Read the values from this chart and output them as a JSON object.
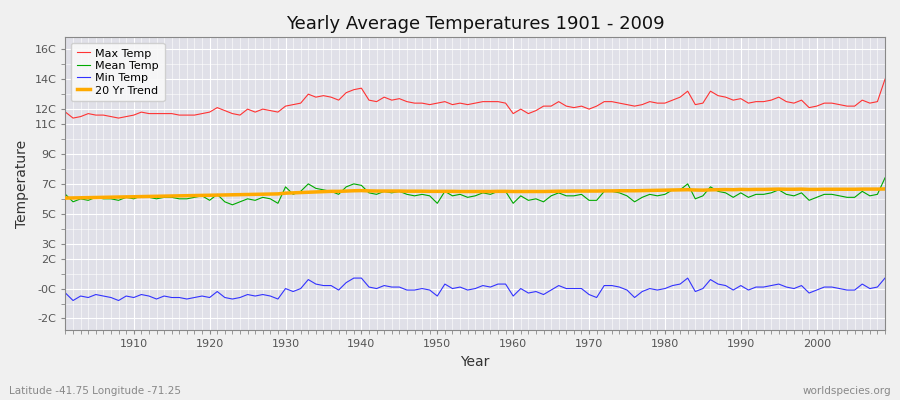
{
  "title": "Yearly Average Temperatures 1901 - 2009",
  "xlabel": "Year",
  "ylabel": "Temperature",
  "lat_lon_text": "Latitude -41.75 Longitude -71.25",
  "source_text": "worldspecies.org",
  "years": [
    1901,
    1902,
    1903,
    1904,
    1905,
    1906,
    1907,
    1908,
    1909,
    1910,
    1911,
    1912,
    1913,
    1914,
    1915,
    1916,
    1917,
    1918,
    1919,
    1920,
    1921,
    1922,
    1923,
    1924,
    1925,
    1926,
    1927,
    1928,
    1929,
    1930,
    1931,
    1932,
    1933,
    1934,
    1935,
    1936,
    1937,
    1938,
    1939,
    1940,
    1941,
    1942,
    1943,
    1944,
    1945,
    1946,
    1947,
    1948,
    1949,
    1950,
    1951,
    1952,
    1953,
    1954,
    1955,
    1956,
    1957,
    1958,
    1959,
    1960,
    1961,
    1962,
    1963,
    1964,
    1965,
    1966,
    1967,
    1968,
    1969,
    1970,
    1971,
    1972,
    1973,
    1974,
    1975,
    1976,
    1977,
    1978,
    1979,
    1980,
    1981,
    1982,
    1983,
    1984,
    1985,
    1986,
    1987,
    1988,
    1989,
    1990,
    1991,
    1992,
    1993,
    1994,
    1995,
    1996,
    1997,
    1998,
    1999,
    2000,
    2001,
    2002,
    2003,
    2004,
    2005,
    2006,
    2007,
    2008,
    2009
  ],
  "max_temp": [
    11.8,
    11.4,
    11.5,
    11.7,
    11.6,
    11.6,
    11.5,
    11.4,
    11.5,
    11.6,
    11.8,
    11.7,
    11.7,
    11.7,
    11.7,
    11.6,
    11.6,
    11.6,
    11.7,
    11.8,
    12.1,
    11.9,
    11.7,
    11.6,
    12.0,
    11.8,
    12.0,
    11.9,
    11.8,
    12.2,
    12.3,
    12.4,
    13.0,
    12.8,
    12.9,
    12.8,
    12.6,
    13.1,
    13.3,
    13.4,
    12.6,
    12.5,
    12.8,
    12.6,
    12.7,
    12.5,
    12.4,
    12.4,
    12.3,
    12.4,
    12.5,
    12.3,
    12.4,
    12.3,
    12.4,
    12.5,
    12.5,
    12.5,
    12.4,
    11.7,
    12.0,
    11.7,
    11.9,
    12.2,
    12.2,
    12.5,
    12.2,
    12.1,
    12.2,
    12.0,
    12.2,
    12.5,
    12.5,
    12.4,
    12.3,
    12.2,
    12.3,
    12.5,
    12.4,
    12.4,
    12.6,
    12.8,
    13.2,
    12.3,
    12.4,
    13.2,
    12.9,
    12.8,
    12.6,
    12.7,
    12.4,
    12.5,
    12.5,
    12.6,
    12.8,
    12.5,
    12.4,
    12.6,
    12.1,
    12.2,
    12.4,
    12.4,
    12.3,
    12.2,
    12.2,
    12.6,
    12.4,
    12.5,
    14.0
  ],
  "mean_temp": [
    6.3,
    5.8,
    6.0,
    5.9,
    6.1,
    6.0,
    6.0,
    5.9,
    6.1,
    6.0,
    6.2,
    6.1,
    6.0,
    6.1,
    6.1,
    6.0,
    6.0,
    6.1,
    6.2,
    5.9,
    6.3,
    5.8,
    5.6,
    5.8,
    6.0,
    5.9,
    6.1,
    6.0,
    5.7,
    6.8,
    6.3,
    6.5,
    7.0,
    6.7,
    6.6,
    6.5,
    6.3,
    6.8,
    7.0,
    6.9,
    6.4,
    6.3,
    6.5,
    6.4,
    6.5,
    6.3,
    6.2,
    6.3,
    6.2,
    5.7,
    6.5,
    6.2,
    6.3,
    6.1,
    6.2,
    6.4,
    6.3,
    6.5,
    6.5,
    5.7,
    6.2,
    5.9,
    6.0,
    5.8,
    6.2,
    6.4,
    6.2,
    6.2,
    6.3,
    5.9,
    5.9,
    6.5,
    6.5,
    6.4,
    6.2,
    5.8,
    6.1,
    6.3,
    6.2,
    6.3,
    6.6,
    6.6,
    7.0,
    6.0,
    6.2,
    6.8,
    6.5,
    6.4,
    6.1,
    6.4,
    6.1,
    6.3,
    6.3,
    6.4,
    6.6,
    6.3,
    6.2,
    6.4,
    5.9,
    6.1,
    6.3,
    6.3,
    6.2,
    6.1,
    6.1,
    6.5,
    6.2,
    6.3,
    7.4
  ],
  "min_temp": [
    -0.3,
    -0.8,
    -0.5,
    -0.6,
    -0.4,
    -0.5,
    -0.6,
    -0.8,
    -0.5,
    -0.6,
    -0.4,
    -0.5,
    -0.7,
    -0.5,
    -0.6,
    -0.6,
    -0.7,
    -0.6,
    -0.5,
    -0.6,
    -0.2,
    -0.6,
    -0.7,
    -0.6,
    -0.4,
    -0.5,
    -0.4,
    -0.5,
    -0.7,
    0.0,
    -0.2,
    0.0,
    0.6,
    0.3,
    0.2,
    0.2,
    -0.1,
    0.4,
    0.7,
    0.7,
    0.1,
    0.0,
    0.2,
    0.1,
    0.1,
    -0.1,
    -0.1,
    0.0,
    -0.1,
    -0.5,
    0.3,
    0.0,
    0.1,
    -0.1,
    0.0,
    0.2,
    0.1,
    0.3,
    0.3,
    -0.5,
    0.0,
    -0.3,
    -0.2,
    -0.4,
    -0.1,
    0.2,
    0.0,
    0.0,
    0.0,
    -0.4,
    -0.6,
    0.2,
    0.2,
    0.1,
    -0.1,
    -0.6,
    -0.2,
    0.0,
    -0.1,
    0.0,
    0.2,
    0.3,
    0.7,
    -0.2,
    0.0,
    0.6,
    0.3,
    0.2,
    -0.1,
    0.2,
    -0.1,
    0.1,
    0.1,
    0.2,
    0.3,
    0.1,
    0.0,
    0.2,
    -0.3,
    -0.1,
    0.1,
    0.1,
    0.0,
    -0.1,
    -0.1,
    0.3,
    0.0,
    0.1,
    0.7
  ],
  "trend": [
    6.05,
    6.06,
    6.07,
    6.08,
    6.09,
    6.1,
    6.11,
    6.12,
    6.13,
    6.14,
    6.15,
    6.16,
    6.17,
    6.18,
    6.19,
    6.2,
    6.21,
    6.22,
    6.23,
    6.24,
    6.25,
    6.26,
    6.27,
    6.28,
    6.29,
    6.3,
    6.31,
    6.32,
    6.33,
    6.38,
    6.4,
    6.42,
    6.44,
    6.46,
    6.48,
    6.5,
    6.5,
    6.52,
    6.54,
    6.55,
    6.53,
    6.52,
    6.52,
    6.52,
    6.52,
    6.51,
    6.51,
    6.51,
    6.5,
    6.5,
    6.5,
    6.5,
    6.49,
    6.49,
    6.49,
    6.49,
    6.49,
    6.5,
    6.5,
    6.49,
    6.49,
    6.49,
    6.49,
    6.49,
    6.5,
    6.51,
    6.51,
    6.52,
    6.52,
    6.52,
    6.52,
    6.53,
    6.53,
    6.54,
    6.54,
    6.54,
    6.55,
    6.56,
    6.57,
    6.58,
    6.59,
    6.6,
    6.61,
    6.59,
    6.58,
    6.6,
    6.61,
    6.62,
    6.61,
    6.63,
    6.62,
    6.63,
    6.63,
    6.64,
    6.65,
    6.64,
    6.64,
    6.65,
    6.63,
    6.63,
    6.64,
    6.64,
    6.64,
    6.64,
    6.64,
    6.65,
    6.65,
    6.65,
    6.66
  ],
  "max_color": "#ff3333",
  "mean_color": "#00aa00",
  "min_color": "#3333ff",
  "trend_color": "#ffaa00",
  "fig_bg_color": "#f0f0f0",
  "plot_bg_color": "#e0e0e8",
  "grid_color": "#ffffff",
  "ytick_labels": [
    "-2C",
    "-0C",
    "2C",
    "3C",
    "5C",
    "7C",
    "9C",
    "11C",
    "12C",
    "14C",
    "16C"
  ],
  "ytick_values": [
    -2,
    0,
    2,
    3,
    5,
    7,
    9,
    11,
    12,
    14,
    16
  ],
  "ylim": [
    -2.8,
    16.8
  ],
  "xlim": [
    1901,
    2009
  ]
}
